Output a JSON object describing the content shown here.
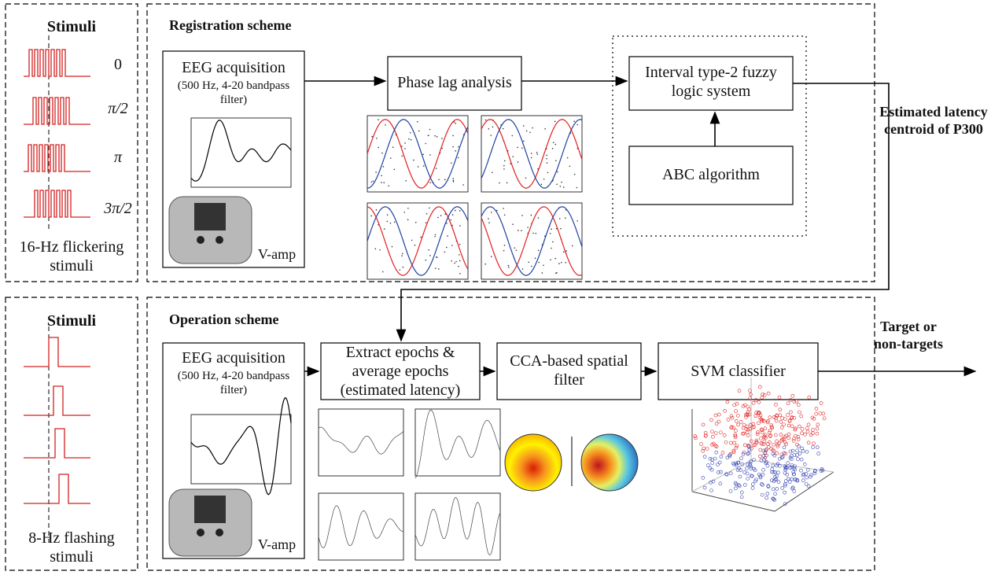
{
  "stimuli_panels": [
    {
      "title": "Stimuli",
      "phase_labels": [
        "0",
        "π/2",
        "π",
        "3π/2"
      ],
      "caption": "16-Hz flickering stimuli"
    },
    {
      "title": "Stimuli",
      "caption": "8-Hz flashing stimuli"
    }
  ],
  "registration": {
    "title": "Registration scheme",
    "eeg": {
      "title": "EEG acquisition",
      "detail": "(500 Hz, 4-20 bandpass filter)",
      "device": "V-amp"
    },
    "phase_lag": "Phase lag analysis",
    "fuzzy": "Interval type-2 fuzzy logic system",
    "abc": "ABC algorithm",
    "output": "Estimated latency centroid of P300"
  },
  "operation": {
    "title": "Operation scheme",
    "eeg": {
      "title": "EEG acquisition",
      "detail": "(500 Hz, 4-20 bandpass filter)",
      "device": "V-amp"
    },
    "extract": "Extract epochs & average epochs (estimated latency)",
    "cca": "CCA-based spatial filter",
    "svm": "SVM classifier",
    "output": "Target or non-targets"
  }
}
